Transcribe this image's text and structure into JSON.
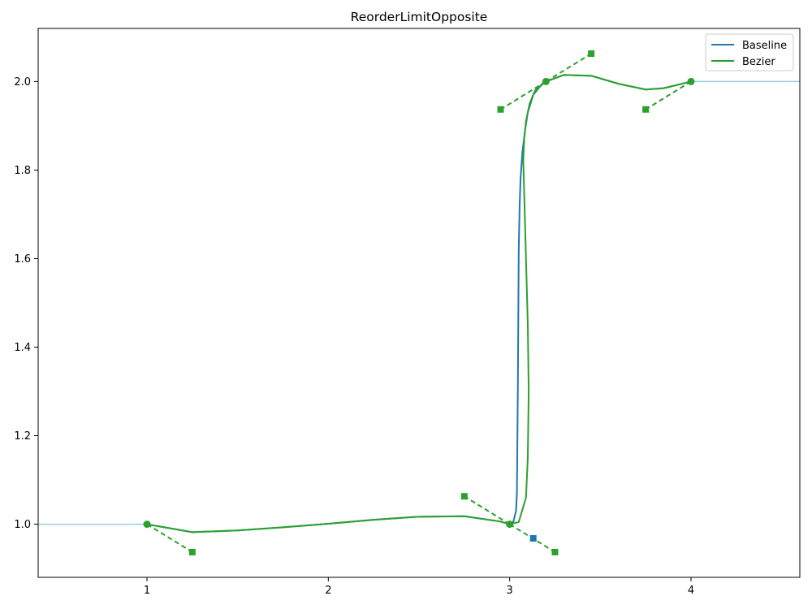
{
  "chart_data": {
    "type": "line",
    "title": "ReorderLimitOpposite",
    "xlim": [
      0.4,
      4.6
    ],
    "ylim": [
      0.88,
      2.12
    ],
    "xticks": [
      "1",
      "2",
      "3",
      "4"
    ],
    "yticks": [
      "1.0",
      "1.2",
      "1.4",
      "1.6",
      "1.8",
      "2.0"
    ],
    "xlabel": "",
    "ylabel": "",
    "grid": false,
    "legend_position": "top-right",
    "colors": {
      "baseline": "#1f77b4",
      "bezier": "#2ca02c",
      "extension": "#9ecae1"
    },
    "extension_lines": [
      {
        "x": [
          0.4,
          1.0
        ],
        "y": [
          1.0,
          1.0
        ]
      },
      {
        "x": [
          4.0,
          4.6
        ],
        "y": [
          2.0,
          2.0
        ]
      }
    ],
    "series": [
      {
        "name": "Baseline",
        "x": [
          1.0,
          1.25,
          1.5,
          1.75,
          2.0,
          2.25,
          2.5,
          2.75,
          2.95,
          3.0,
          3.02,
          3.035,
          3.04,
          3.045,
          3.05,
          3.055,
          3.06,
          3.07,
          3.085,
          3.1,
          3.13,
          3.18,
          3.2,
          3.3,
          3.45,
          3.6,
          3.75,
          3.85,
          4.0
        ],
        "y": [
          1.0,
          0.982,
          0.986,
          0.993,
          1.001,
          1.01,
          1.017,
          1.018,
          1.006,
          1.0,
          1.005,
          1.03,
          1.07,
          1.3,
          1.62,
          1.72,
          1.78,
          1.84,
          1.89,
          1.93,
          1.97,
          1.995,
          2.0,
          2.015,
          2.013,
          1.995,
          1.982,
          1.985,
          2.0
        ]
      },
      {
        "name": "Bezier",
        "x": [
          1.0,
          1.25,
          1.5,
          1.75,
          2.0,
          2.25,
          2.5,
          2.75,
          2.95,
          3.0,
          3.05,
          3.09,
          3.1,
          3.105,
          3.1,
          3.09,
          3.08,
          3.075,
          3.08,
          3.09,
          3.11,
          3.14,
          3.2,
          3.3,
          3.45,
          3.6,
          3.75,
          3.85,
          4.0
        ],
        "y": [
          1.0,
          0.982,
          0.986,
          0.993,
          1.001,
          1.01,
          1.017,
          1.018,
          1.006,
          1.0,
          1.005,
          1.06,
          1.15,
          1.3,
          1.45,
          1.6,
          1.75,
          1.82,
          1.87,
          1.91,
          1.95,
          1.98,
          2.0,
          2.015,
          2.013,
          1.995,
          1.982,
          1.985,
          2.0
        ]
      }
    ],
    "anchor_points": [
      {
        "x": 1.0,
        "y": 1.0
      },
      {
        "x": 3.0,
        "y": 1.0
      },
      {
        "x": 3.2,
        "y": 2.0
      },
      {
        "x": 4.0,
        "y": 2.0
      }
    ],
    "handles": [
      {
        "from": [
          1.0,
          1.0
        ],
        "to": [
          1.25,
          0.937
        ]
      },
      {
        "from": [
          3.0,
          1.0
        ],
        "to": [
          2.75,
          1.063
        ]
      },
      {
        "from": [
          3.0,
          1.0
        ],
        "to": [
          3.25,
          0.937
        ]
      },
      {
        "from": [
          3.2,
          2.0
        ],
        "to": [
          2.95,
          1.937
        ]
      },
      {
        "from": [
          3.2,
          2.0
        ],
        "to": [
          3.45,
          2.063
        ]
      },
      {
        "from": [
          4.0,
          2.0
        ],
        "to": [
          3.75,
          1.937
        ]
      }
    ],
    "baseline_handle_marker": {
      "x": 3.13,
      "y": 0.968
    }
  }
}
